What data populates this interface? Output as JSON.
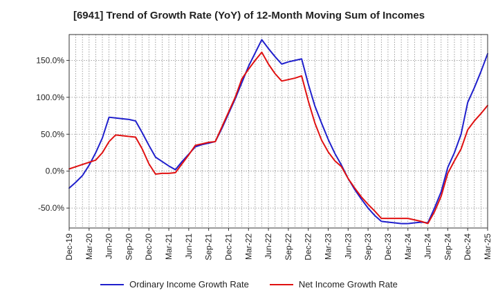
{
  "chart_data": {
    "type": "line",
    "title": "[6941]  Trend of Growth Rate (YoY) of 12-Month Moving Sum of Incomes",
    "xlabel": "",
    "ylabel": "",
    "ylim": [
      -77,
      185
    ],
    "yticks": [
      -50,
      0,
      50,
      100,
      150
    ],
    "ytick_labels": [
      "-50.0%",
      "0.0%",
      "50.0%",
      "100.0%",
      "150.0%"
    ],
    "x": [
      "Dec-19",
      "Jan-20",
      "Feb-20",
      "Mar-20",
      "Apr-20",
      "May-20",
      "Jun-20",
      "Jul-20",
      "Aug-20",
      "Sep-20",
      "Oct-20",
      "Nov-20",
      "Dec-20",
      "Jan-21",
      "Feb-21",
      "Mar-21",
      "Apr-21",
      "May-21",
      "Jun-21",
      "Jul-21",
      "Aug-21",
      "Sep-21",
      "Oct-21",
      "Nov-21",
      "Dec-21",
      "Jan-22",
      "Feb-22",
      "Mar-22",
      "Apr-22",
      "May-22",
      "Jun-22",
      "Jul-22",
      "Aug-22",
      "Sep-22",
      "Oct-22",
      "Nov-22",
      "Dec-22",
      "Jan-23",
      "Feb-23",
      "Mar-23",
      "Apr-23",
      "May-23",
      "Jun-23",
      "Jul-23",
      "Aug-23",
      "Sep-23",
      "Oct-23",
      "Nov-23",
      "Dec-23",
      "Jan-24",
      "Feb-24",
      "Mar-24",
      "Apr-24",
      "May-24",
      "Jun-24",
      "Jul-24",
      "Aug-24",
      "Sep-24",
      "Oct-24",
      "Nov-24",
      "Dec-24",
      "Jan-25",
      "Feb-25",
      "Mar-25"
    ],
    "xtick_labels": [
      "Dec-19",
      "Mar-20",
      "Jun-20",
      "Sep-20",
      "Dec-20",
      "Mar-21",
      "Jun-21",
      "Sep-21",
      "Dec-21",
      "Mar-22",
      "Jun-22",
      "Sep-22",
      "Dec-22",
      "Mar-23",
      "Jun-23",
      "Sep-23",
      "Dec-23",
      "Mar-24",
      "Jun-24",
      "Sep-24",
      "Dec-24",
      "Mar-25"
    ],
    "grid": true,
    "legend_position": "bottom",
    "series": [
      {
        "name": "Ordinary Income Growth Rate",
        "color": "#1f1fcc",
        "values": [
          -23,
          -15,
          -6,
          8,
          25,
          45,
          73,
          72,
          71,
          70,
          68,
          52,
          35,
          19,
          13,
          7,
          2,
          13,
          23,
          33,
          36,
          38,
          40,
          58,
          78,
          98,
          120,
          142,
          160,
          178,
          166,
          155,
          145,
          148,
          150,
          152,
          118,
          88,
          65,
          43,
          24,
          8,
          -10,
          -25,
          -38,
          -50,
          -60,
          -68,
          -69,
          -70,
          -71,
          -71,
          -70,
          -69,
          -70,
          -50,
          -28,
          5,
          25,
          50,
          93,
          113,
          135,
          159
        ]
      },
      {
        "name": "Net Income Growth Rate",
        "color": "#e01010",
        "values": [
          3,
          6,
          9,
          12,
          15,
          25,
          40,
          49,
          48,
          47,
          46,
          30,
          10,
          -4,
          -3,
          -3,
          -2,
          10,
          22,
          35,
          37,
          39,
          40,
          60,
          80,
          100,
          125,
          138,
          150,
          161,
          145,
          132,
          122,
          124,
          126,
          129,
          95,
          65,
          42,
          26,
          14,
          6,
          -10,
          -23,
          -35,
          -45,
          -54,
          -64,
          -64,
          -64,
          -64,
          -64,
          -66,
          -68,
          -71,
          -55,
          -34,
          -3,
          14,
          30,
          56,
          68,
          78,
          89
        ]
      }
    ]
  },
  "legend": {
    "item1_label": "Ordinary Income Growth Rate",
    "item2_label": "Net Income Growth Rate",
    "item1_color": "#1f1fcc",
    "item2_color": "#e01010"
  }
}
